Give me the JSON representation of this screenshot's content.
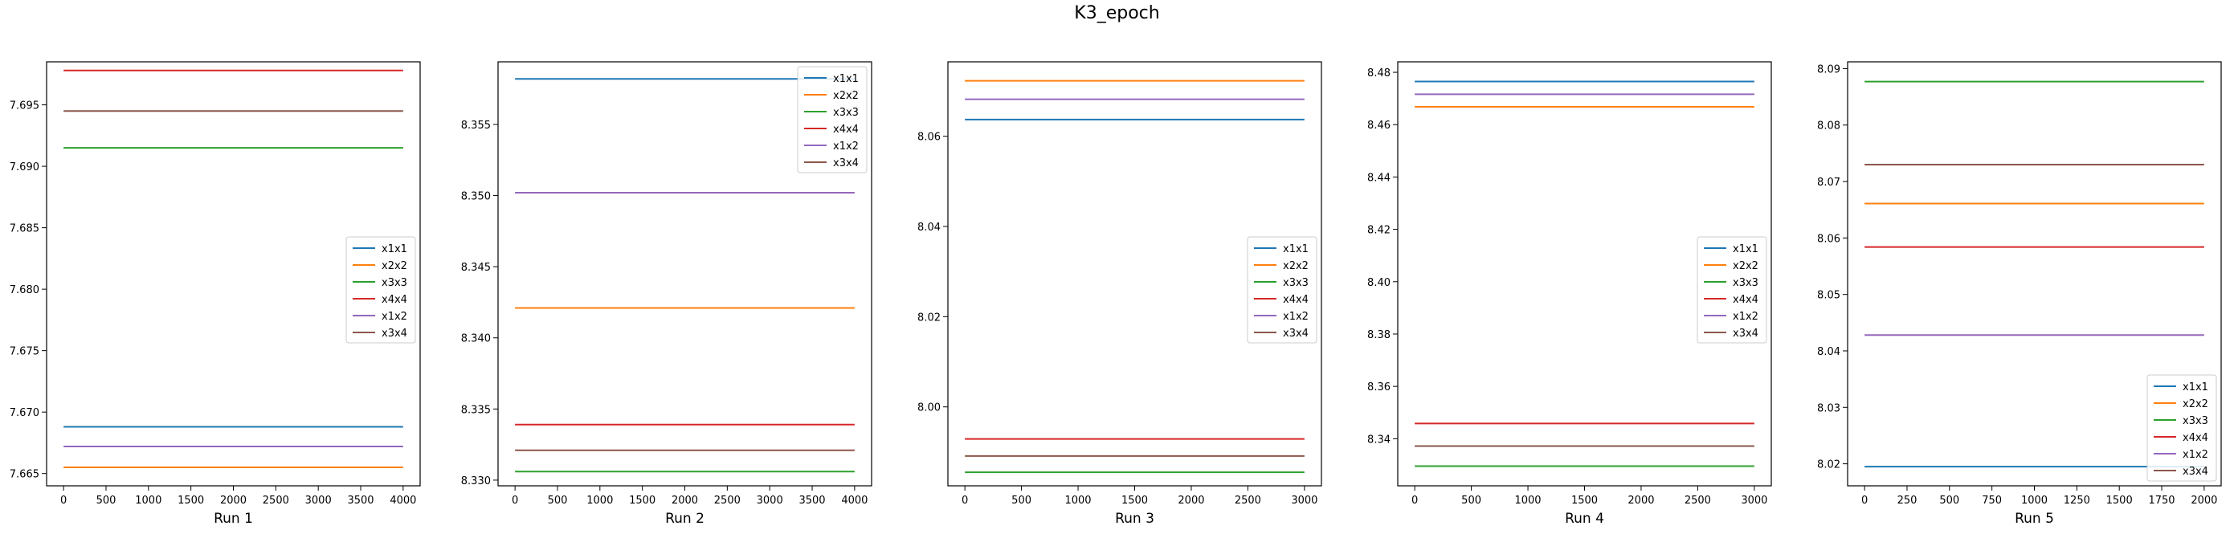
{
  "title": "K3_epoch",
  "colors": {
    "x1x1": "#1f77b4",
    "x2x2": "#ff7f0e",
    "x3x3": "#2ca02c",
    "x4x4": "#d62728",
    "x1x2": "#9467bd",
    "x3x4": "#8c564b"
  },
  "chart_data": [
    {
      "type": "line",
      "xlabel": "Run 1",
      "xlim": [
        -200,
        4200
      ],
      "ylim": [
        7.664,
        7.6985
      ],
      "xticks": [
        0,
        500,
        1000,
        1500,
        2000,
        2500,
        3000,
        3500,
        4000
      ],
      "yticks": [
        "7.665",
        "7.670",
        "7.675",
        "7.680",
        "7.685",
        "7.690",
        "7.695"
      ],
      "legend_position": "center-right",
      "x": [
        0,
        4000
      ],
      "series": [
        {
          "name": "x1x1",
          "values": [
            7.6688,
            7.6688
          ]
        },
        {
          "name": "x2x2",
          "values": [
            7.6655,
            7.6655
          ]
        },
        {
          "name": "x3x3",
          "values": [
            7.6915,
            7.6915
          ]
        },
        {
          "name": "x4x4",
          "values": [
            7.6978,
            7.6978
          ]
        },
        {
          "name": "x1x2",
          "values": [
            7.6672,
            7.6672
          ]
        },
        {
          "name": "x3x4",
          "values": [
            7.6945,
            7.6945
          ]
        }
      ]
    },
    {
      "type": "line",
      "xlabel": "Run 2",
      "xlim": [
        -200,
        4200
      ],
      "ylim": [
        8.3296,
        8.3594
      ],
      "xticks": [
        0,
        500,
        1000,
        1500,
        2000,
        2500,
        3000,
        3500,
        4000
      ],
      "yticks": [
        "8.330",
        "8.335",
        "8.340",
        "8.345",
        "8.350",
        "8.355"
      ],
      "legend_position": "top-right",
      "x": [
        0,
        4000
      ],
      "series": [
        {
          "name": "x1x1",
          "values": [
            8.3582,
            8.3582
          ]
        },
        {
          "name": "x2x2",
          "values": [
            8.3421,
            8.3421
          ]
        },
        {
          "name": "x3x3",
          "values": [
            8.3306,
            8.3306
          ]
        },
        {
          "name": "x4x4",
          "values": [
            8.3339,
            8.3339
          ]
        },
        {
          "name": "x1x2",
          "values": [
            8.3502,
            8.3502
          ]
        },
        {
          "name": "x3x4",
          "values": [
            8.3321,
            8.3321
          ]
        }
      ]
    },
    {
      "type": "line",
      "xlabel": "Run 3",
      "xlim": [
        -150,
        3150
      ],
      "ylim": [
        7.9825,
        8.0765
      ],
      "xticks": [
        0,
        500,
        1000,
        1500,
        2000,
        2500,
        3000
      ],
      "yticks": [
        "8.00",
        "8.02",
        "8.04",
        "8.06"
      ],
      "legend_position": "center-right",
      "x": [
        0,
        3000
      ],
      "series": [
        {
          "name": "x1x1",
          "values": [
            8.0637,
            8.0637
          ]
        },
        {
          "name": "x2x2",
          "values": [
            8.0723,
            8.0723
          ]
        },
        {
          "name": "x3x3",
          "values": [
            7.9855,
            7.9855
          ]
        },
        {
          "name": "x4x4",
          "values": [
            7.9929,
            7.9929
          ]
        },
        {
          "name": "x1x2",
          "values": [
            8.0682,
            8.0682
          ]
        },
        {
          "name": "x3x4",
          "values": [
            7.9891,
            7.9891
          ]
        }
      ]
    },
    {
      "type": "line",
      "xlabel": "Run 4",
      "xlim": [
        -150,
        3150
      ],
      "ylim": [
        8.322,
        8.484
      ],
      "xticks": [
        0,
        500,
        1000,
        1500,
        2000,
        2500,
        3000
      ],
      "yticks": [
        "8.34",
        "8.36",
        "8.38",
        "8.40",
        "8.42",
        "8.44",
        "8.46",
        "8.48"
      ],
      "legend_position": "center-right",
      "x": [
        0,
        3000
      ],
      "series": [
        {
          "name": "x1x1",
          "values": [
            8.4765,
            8.4765
          ]
        },
        {
          "name": "x2x2",
          "values": [
            8.4668,
            8.4668
          ]
        },
        {
          "name": "x3x3",
          "values": [
            8.3295,
            8.3295
          ]
        },
        {
          "name": "x4x4",
          "values": [
            8.3458,
            8.3458
          ]
        },
        {
          "name": "x1x2",
          "values": [
            8.4716,
            8.4716
          ]
        },
        {
          "name": "x3x4",
          "values": [
            8.3372,
            8.3372
          ]
        }
      ]
    },
    {
      "type": "line",
      "xlabel": "Run 5",
      "xlim": [
        -100,
        2100
      ],
      "ylim": [
        8.0161,
        8.0912
      ],
      "xticks": [
        0,
        250,
        500,
        750,
        1000,
        1250,
        1500,
        1750,
        2000
      ],
      "yticks": [
        "8.02",
        "8.03",
        "8.04",
        "8.05",
        "8.06",
        "8.07",
        "8.08",
        "8.09"
      ],
      "legend_position": "bottom-right",
      "x": [
        0,
        2000
      ],
      "series": [
        {
          "name": "x1x1",
          "values": [
            8.0195,
            8.0195
          ]
        },
        {
          "name": "x2x2",
          "values": [
            8.0661,
            8.0661
          ]
        },
        {
          "name": "x3x3",
          "values": [
            8.0877,
            8.0877
          ]
        },
        {
          "name": "x4x4",
          "values": [
            8.0584,
            8.0584
          ]
        },
        {
          "name": "x1x2",
          "values": [
            8.0428,
            8.0428
          ]
        },
        {
          "name": "x3x4",
          "values": [
            8.073,
            8.073
          ]
        }
      ]
    }
  ]
}
